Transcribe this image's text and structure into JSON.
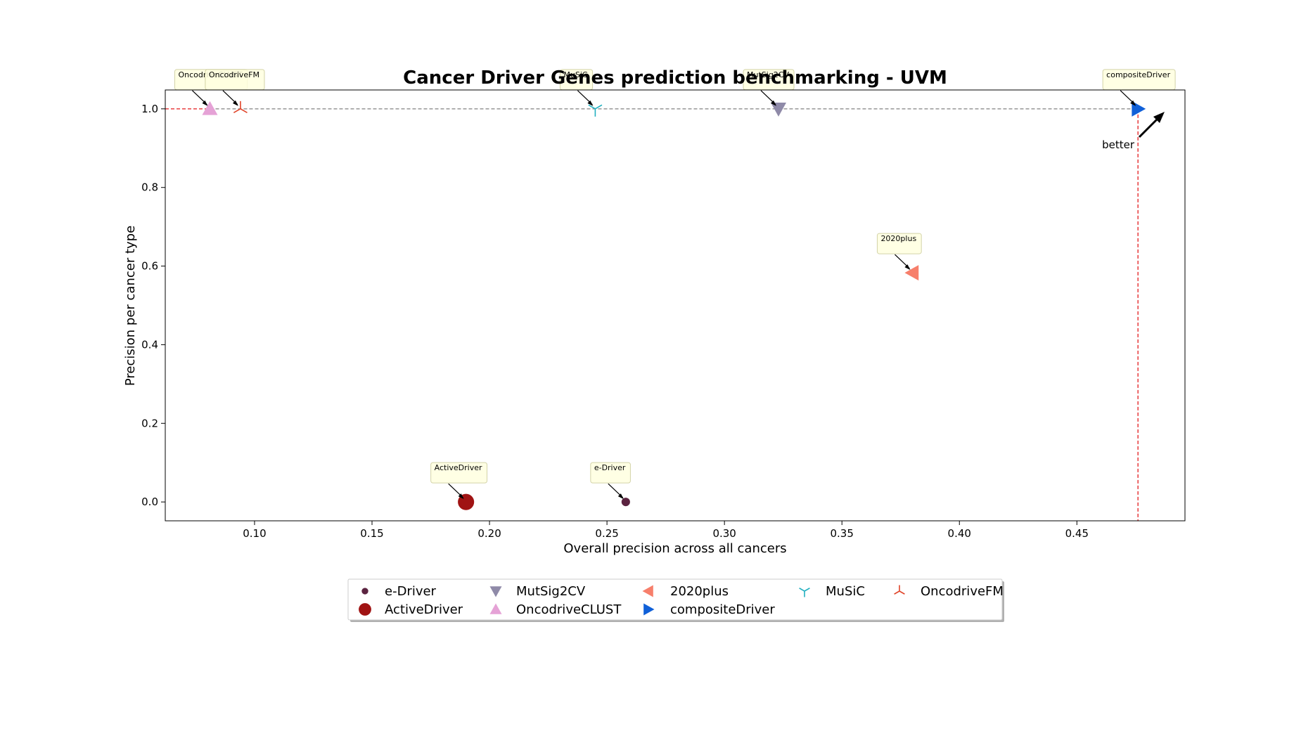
{
  "chart_data": {
    "type": "scatter",
    "title": "Cancer Driver Genes prediction benchmarking - UVM",
    "xlabel": "Overall precision across all cancers",
    "ylabel": "Precision per cancer type",
    "xlim": [
      0.062,
      0.496
    ],
    "ylim": [
      -0.048,
      1.048
    ],
    "xticks": [
      "0.10",
      "0.15",
      "0.20",
      "0.25",
      "0.30",
      "0.35",
      "0.40",
      "0.45"
    ],
    "yticks": [
      "0.0",
      "0.2",
      "0.4",
      "0.6",
      "0.8",
      "1.0"
    ],
    "grid": false,
    "legend_position": "bottom-center",
    "better_label": "better",
    "series": [
      {
        "name": "e-Driver",
        "x": 0.258,
        "y": 0.0,
        "marker": "circle-small",
        "color": "#5b2340"
      },
      {
        "name": "ActiveDriver",
        "x": 0.19,
        "y": 0.0,
        "marker": "circle-large",
        "color": "#a01313"
      },
      {
        "name": "MutSig2CV",
        "x": 0.323,
        "y": 1.0,
        "marker": "triangle-down",
        "color": "#8f8aa8"
      },
      {
        "name": "OncodriveCLUST",
        "x": 0.081,
        "y": 1.0,
        "marker": "triangle-up",
        "color": "#e5a2d6"
      },
      {
        "name": "2020plus",
        "x": 0.38,
        "y": 0.583,
        "marker": "triangle-left",
        "color": "#f77f6b"
      },
      {
        "name": "compositeDriver",
        "x": 0.476,
        "y": 1.0,
        "marker": "triangle-right",
        "color": "#1060d8"
      },
      {
        "name": "MuSiC",
        "x": 0.245,
        "y": 1.0,
        "marker": "tri-down",
        "color": "#22b0c0"
      },
      {
        "name": "OncodriveFM",
        "x": 0.094,
        "y": 1.0,
        "marker": "tri-up",
        "color": "#e0452a"
      }
    ],
    "annotations": [
      {
        "series": "OncodriveCLUST",
        "text": "OncodriveCLUST"
      },
      {
        "series": "OncodriveFM",
        "text": "OncodriveFM"
      },
      {
        "series": "MuSiC",
        "text": "MuSiC"
      },
      {
        "series": "MutSig2CV",
        "text": "MutSig2CV"
      },
      {
        "series": "compositeDriver",
        "text": "compositeDriver"
      },
      {
        "series": "2020plus",
        "text": "2020plus"
      },
      {
        "series": "ActiveDriver",
        "text": "ActiveDriver"
      },
      {
        "series": "e-Driver",
        "text": "e-Driver"
      }
    ],
    "colors": {
      "pareto_line": "#e41a1c",
      "reference_line": "#808080",
      "annotation_box": "#ffffe0",
      "annotation_border": "#cccc99"
    }
  }
}
